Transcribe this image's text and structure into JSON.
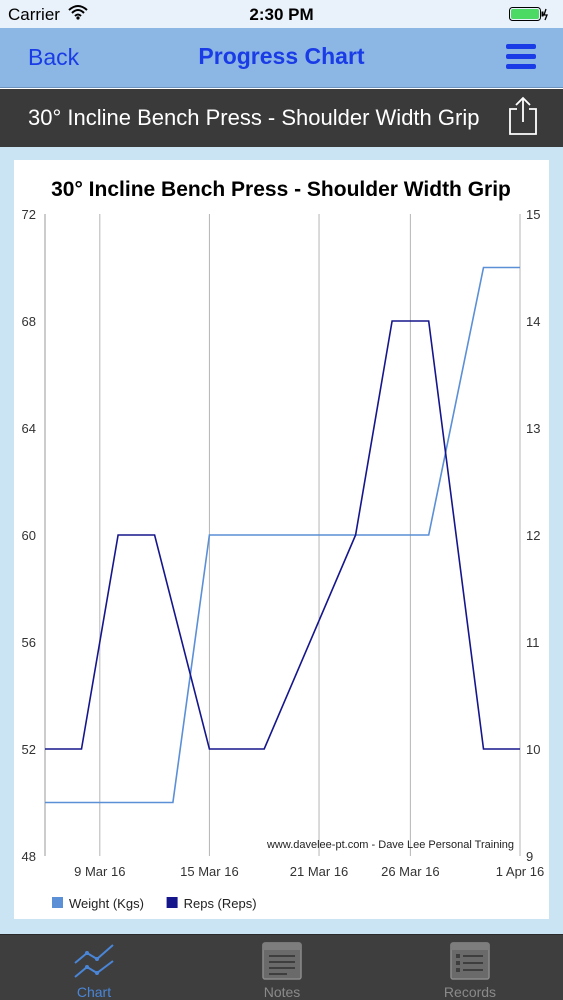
{
  "status_bar": {
    "carrier": "Carrier",
    "time": "2:30 PM"
  },
  "nav": {
    "back_label": "Back",
    "title": "Progress Chart",
    "menu_icon": "hamburger-menu-icon"
  },
  "sub_header": {
    "title": "30° Incline Bench Press - Shoulder Width Grip",
    "share_icon": "share-icon"
  },
  "tabs": [
    {
      "label": "Chart",
      "icon": "chart-icon",
      "active": true
    },
    {
      "label": "Notes",
      "icon": "notes-icon",
      "active": false
    },
    {
      "label": "Records",
      "icon": "records-icon",
      "active": false
    }
  ],
  "colors": {
    "nav_bg": "#8cb6e3",
    "nav_text": "#1a3ce6",
    "weight_series": "#5b8fd6",
    "reps_series": "#16168c",
    "active_tab": "#4a86d8"
  },
  "chart_data": {
    "type": "line",
    "title": "30° Incline Bench Press - Shoulder Width Grip",
    "x_ticks": [
      "9 Mar 16",
      "15 Mar 16",
      "21 Mar 16",
      "26 Mar 16",
      "1 Apr 16"
    ],
    "x_range": [
      "2016-03-06",
      "2016-04-01"
    ],
    "y_left": {
      "ticks": [
        "48",
        "52",
        "56",
        "60",
        "64",
        "68",
        "72"
      ],
      "range": [
        48,
        72
      ]
    },
    "y_right": {
      "ticks": [
        "9",
        "10",
        "11",
        "12",
        "13",
        "14",
        "15"
      ],
      "range": [
        9,
        15
      ]
    },
    "grid": "vertical lines at x ticks",
    "legend_position": "bottom-left",
    "watermark": "www.davelee-pt.com - Dave Lee Personal Training",
    "series": [
      {
        "name": "Weight (Kgs)",
        "axis": "left",
        "points": [
          {
            "x": "2016-03-06",
            "y": 50
          },
          {
            "x": "2016-03-13",
            "y": 50
          },
          {
            "x": "2016-03-15",
            "y": 60
          },
          {
            "x": "2016-03-27",
            "y": 60
          },
          {
            "x": "2016-03-30",
            "y": 70
          },
          {
            "x": "2016-04-01",
            "y": 70
          }
        ]
      },
      {
        "name": "Reps (Reps)",
        "axis": "right",
        "points": [
          {
            "x": "2016-03-06",
            "y": 10
          },
          {
            "x": "2016-03-08",
            "y": 10
          },
          {
            "x": "2016-03-10",
            "y": 12
          },
          {
            "x": "2016-03-12",
            "y": 12
          },
          {
            "x": "2016-03-15",
            "y": 10
          },
          {
            "x": "2016-03-18",
            "y": 10
          },
          {
            "x": "2016-03-23",
            "y": 12
          },
          {
            "x": "2016-03-25",
            "y": 14
          },
          {
            "x": "2016-03-27",
            "y": 14
          },
          {
            "x": "2016-03-30",
            "y": 10
          },
          {
            "x": "2016-04-01",
            "y": 10
          }
        ]
      }
    ]
  }
}
